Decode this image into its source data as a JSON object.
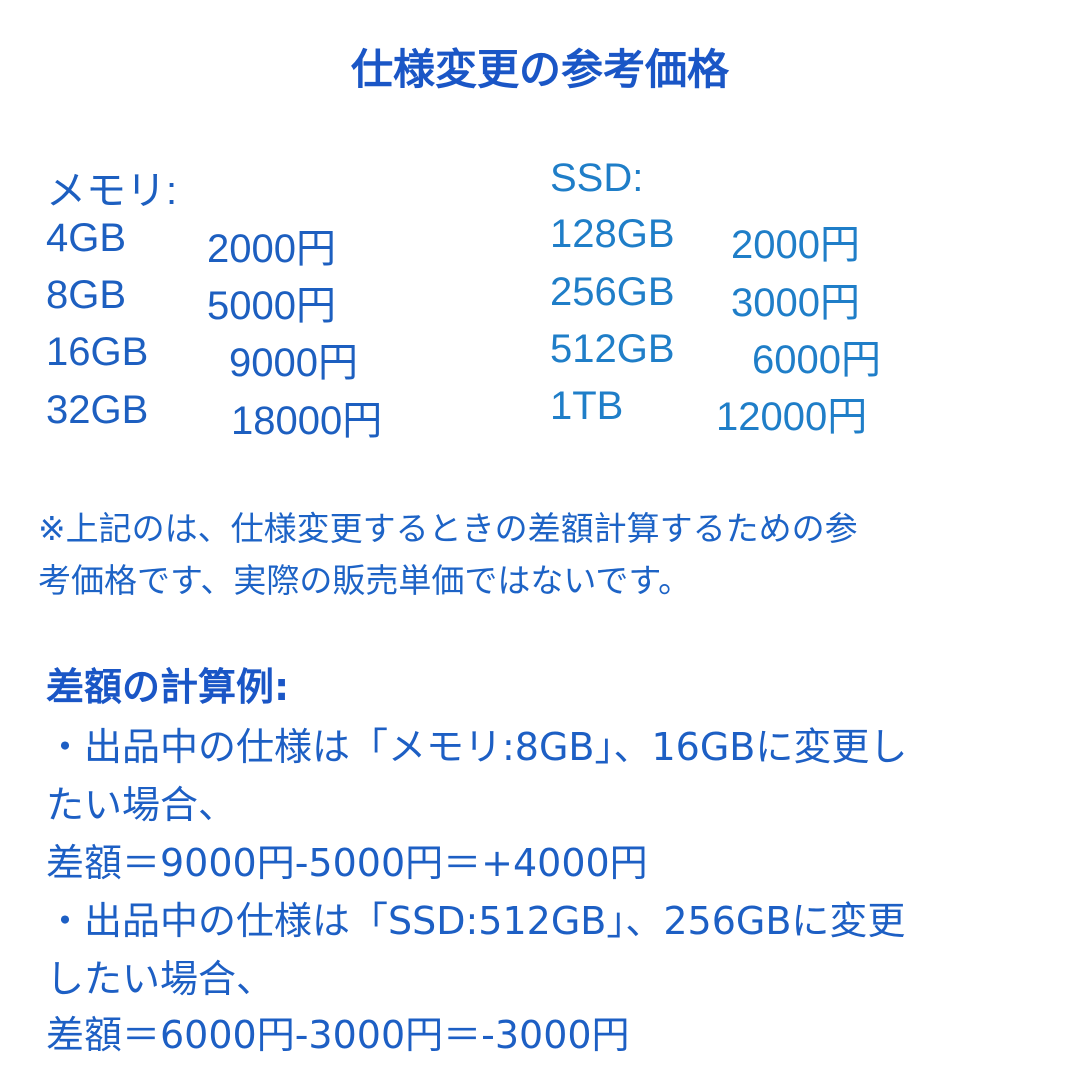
{
  "title": "仕様変更の参考価格",
  "memory": {
    "heading": "メモリ:",
    "rows": [
      {
        "size": "4GB",
        "price": "2000円"
      },
      {
        "size": "8GB",
        "price": "5000円"
      },
      {
        "size": "16GB",
        "price": "9000円"
      },
      {
        "size": "32GB",
        "price": "18000円"
      }
    ]
  },
  "ssd": {
    "heading": "SSD:",
    "rows": [
      {
        "size": "128GB",
        "price": "2000円"
      },
      {
        "size": "256GB",
        "price": "3000円"
      },
      {
        "size": "512GB",
        "price": "6000円"
      },
      {
        "size": "1TB",
        "price": "12000円"
      }
    ]
  },
  "note": {
    "lines": [
      "※上記のは、仕様変更するときの差額計算するための参",
      "考価格です、実際の販売単価ではないです。"
    ]
  },
  "example": {
    "heading": "差額の計算例:",
    "lines": [
      "・出品中の仕様は「メモリ:8GB」、16GBに変更し",
      "たい場合、",
      "差額＝9000円-5000円＝+4000円",
      "・出品中の仕様は「SSD:512GB」、256GBに変更",
      "したい場合、",
      "差額＝6000円-3000円＝-3000円"
    ]
  }
}
